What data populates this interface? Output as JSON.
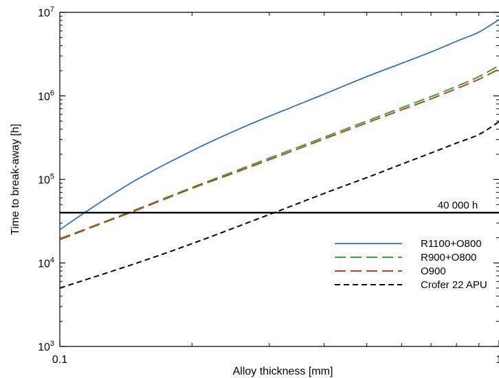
{
  "chart_data": {
    "type": "line",
    "title": "",
    "xlabel": "Alloy thickness [mm]",
    "ylabel": "Time to break-away [h]",
    "x_scale": "log",
    "y_scale": "log",
    "xlim": [
      0.1,
      1.0
    ],
    "ylim": [
      1000,
      10000000
    ],
    "grid": false,
    "legend_position": "bottom-right",
    "x_ticks": [
      {
        "value": 0.1,
        "label": "0.1"
      },
      {
        "value": 1.0,
        "label": "1"
      }
    ],
    "y_ticks": [
      {
        "value": 1000,
        "base": "10",
        "exp": "3"
      },
      {
        "value": 10000,
        "base": "10",
        "exp": "4"
      },
      {
        "value": 100000,
        "base": "10",
        "exp": "5"
      },
      {
        "value": 1000000,
        "base": "10",
        "exp": "6"
      },
      {
        "value": 10000000,
        "base": "10",
        "exp": "7"
      }
    ],
    "hline": {
      "y": 40000,
      "label": "40 000 h",
      "color": "#000000"
    },
    "series": [
      {
        "name": "R1100+O800",
        "color": "#2a72c8",
        "dash": "solid",
        "x": [
          0.1,
          0.12,
          0.15,
          0.2,
          0.25,
          0.3,
          0.4,
          0.5,
          0.6,
          0.7,
          0.8,
          0.9,
          1.0
        ],
        "y": [
          25000,
          48000,
          100000,
          220000,
          380000,
          570000,
          1050000,
          1700000,
          2450000,
          3350000,
          4500000,
          5800000,
          8200000
        ]
      },
      {
        "name": "R900+O800",
        "color": "#3aa03a",
        "dash": "long",
        "x": [
          0.1,
          0.12,
          0.15,
          0.2,
          0.25,
          0.3,
          0.4,
          0.5,
          0.6,
          0.7,
          0.8,
          0.9,
          1.0
        ],
        "y": [
          19500,
          28000,
          44000,
          80000,
          125000,
          180000,
          320000,
          500000,
          720000,
          980000,
          1300000,
          1700000,
          2300000
        ]
      },
      {
        "name": "O900",
        "color": "#b5451b",
        "dash": "long",
        "x": [
          0.1,
          0.12,
          0.15,
          0.2,
          0.25,
          0.3,
          0.4,
          0.5,
          0.6,
          0.7,
          0.8,
          0.9,
          1.0
        ],
        "y": [
          19000,
          27500,
          43000,
          78000,
          120000,
          172000,
          305000,
          475000,
          680000,
          920000,
          1220000,
          1580000,
          2100000
        ]
      },
      {
        "name": "Crofer 22 APU",
        "color": "#000000",
        "dash": "short",
        "x": [
          0.1,
          0.15,
          0.2,
          0.3,
          0.4,
          0.5,
          0.6,
          0.7,
          0.8,
          0.9,
          1.0
        ],
        "y": [
          5000,
          10000,
          17000,
          38000,
          68000,
          105000,
          152000,
          207000,
          272000,
          345000,
          490000
        ]
      }
    ]
  }
}
